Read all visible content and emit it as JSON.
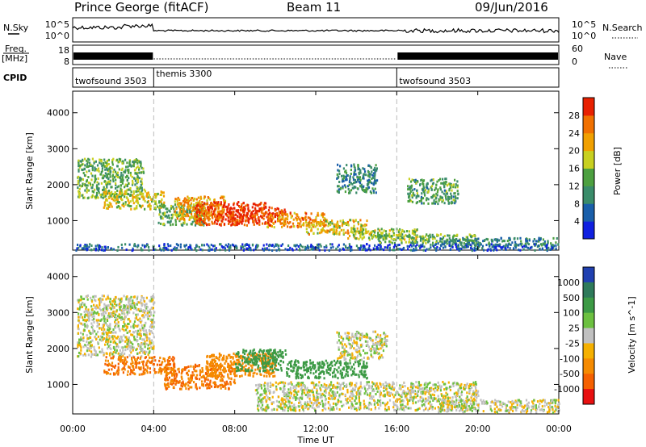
{
  "header": {
    "station": "Prince George (fitACF)",
    "beam": "Beam 11",
    "date": "09/Jun/2016"
  },
  "noise_panel": {
    "left_label": "N.Sky",
    "left_ticks": [
      "10^5",
      "10^0"
    ],
    "right_label": "N.Search",
    "right_ticks": [
      "10^5",
      "10^0"
    ]
  },
  "freq_panel": {
    "left_label_1": "Freq.",
    "left_label_2": "[MHz]",
    "left_ticks": [
      "18",
      "8"
    ],
    "right_label": "Nave",
    "right_ticks": [
      "60",
      "0"
    ]
  },
  "cpid": {
    "label": "CPID",
    "segments": [
      {
        "name": "twofsound 3503",
        "start": 0,
        "end": 4
      },
      {
        "name": "themis 3300",
        "start": 4,
        "end": 16
      },
      {
        "name": "twofsound 3503",
        "start": 16,
        "end": 24
      }
    ]
  },
  "x_axis": {
    "label": "Time UT",
    "ticks": [
      "00:00",
      "04:00",
      "08:00",
      "12:00",
      "16:00",
      "20:00",
      "00:00"
    ],
    "range_hours": [
      0,
      24
    ]
  },
  "y_axis": {
    "label": "Slant Range [km]",
    "ticks": [
      "1000",
      "2000",
      "3000",
      "4000"
    ],
    "range_km": [
      180,
      4600
    ]
  },
  "power_colorbar": {
    "label": "Power [dB]",
    "ticks": [
      "4",
      "8",
      "12",
      "16",
      "20",
      "24",
      "28"
    ],
    "range": [
      0,
      32
    ],
    "colors": [
      "#1020e0",
      "#1a5faa",
      "#3a8c6a",
      "#4da040",
      "#c8d020",
      "#f0a000",
      "#f07000",
      "#e82000"
    ]
  },
  "velocity_colorbar": {
    "label": "Velocity [m s^-1]",
    "ticks": [
      "1000",
      "500",
      "100",
      "25",
      "-25",
      "-100",
      "-500",
      "-1000"
    ],
    "colors": [
      "#2040b0",
      "#2e7a5a",
      "#3c9a45",
      "#6cc040",
      "#c0c0c0",
      "#f5b000",
      "#f58a00",
      "#f56000",
      "#e81010"
    ]
  },
  "chart_data": {
    "type": "heatmap",
    "title": "Prince George (fitACF)  Beam 11  09/Jun/2016",
    "xlabel": "Time UT",
    "ylabel": "Slant Range [km]",
    "xlim": [
      0,
      24
    ],
    "ylim": [
      180,
      4600
    ],
    "grid": false,
    "power_patches": [
      {
        "t0": 0.2,
        "t1": 3.5,
        "r0": 1650,
        "r1": 2750,
        "power": 14
      },
      {
        "t0": 1.5,
        "t1": 4.5,
        "r0": 1350,
        "r1": 1850,
        "power": 19
      },
      {
        "t0": 4.2,
        "t1": 6.5,
        "r0": 900,
        "r1": 1500,
        "power": 13
      },
      {
        "t0": 5.0,
        "t1": 7.5,
        "r0": 1050,
        "r1": 1700,
        "power": 23
      },
      {
        "t0": 6.0,
        "t1": 9.5,
        "r0": 900,
        "r1": 1550,
        "power": 29
      },
      {
        "t0": 7.5,
        "t1": 10.5,
        "r0": 1000,
        "r1": 1400,
        "power": 30
      },
      {
        "t0": 9.5,
        "t1": 12.5,
        "r0": 850,
        "r1": 1250,
        "power": 24
      },
      {
        "t0": 11.5,
        "t1": 14.5,
        "r0": 650,
        "r1": 1050,
        "power": 20
      },
      {
        "t0": 13.5,
        "t1": 17.0,
        "r0": 500,
        "r1": 800,
        "power": 17
      },
      {
        "t0": 15.0,
        "t1": 20.0,
        "r0": 400,
        "r1": 650,
        "power": 14
      },
      {
        "t0": 18.0,
        "t1": 24.0,
        "r0": 300,
        "r1": 550,
        "power": 10
      },
      {
        "t0": 13.0,
        "t1": 15.0,
        "r0": 1800,
        "r1": 2600,
        "power": 10
      },
      {
        "t0": 16.5,
        "t1": 19.0,
        "r0": 1500,
        "r1": 2200,
        "power": 12
      },
      {
        "t0": 0.1,
        "t1": 23.9,
        "r0": 200,
        "r1": 380,
        "power": 6
      }
    ],
    "velocity_patches": [
      {
        "t0": 0.2,
        "t1": 4.0,
        "r0": 1800,
        "r1": 3500,
        "velocity": 0
      },
      {
        "t0": 1.5,
        "t1": 5.0,
        "r0": 1300,
        "r1": 1800,
        "velocity": -300
      },
      {
        "t0": 4.5,
        "t1": 8.0,
        "r0": 900,
        "r1": 1600,
        "velocity": -300
      },
      {
        "t0": 6.5,
        "t1": 10.0,
        "r0": 1250,
        "r1": 1900,
        "velocity": -150
      },
      {
        "t0": 8.0,
        "t1": 10.5,
        "r0": 1400,
        "r1": 2000,
        "velocity": 150
      },
      {
        "t0": 10.5,
        "t1": 14.5,
        "r0": 1200,
        "r1": 1700,
        "velocity": 200
      },
      {
        "t0": 9.0,
        "t1": 20.0,
        "r0": 300,
        "r1": 1100,
        "velocity": 0
      },
      {
        "t0": 18.0,
        "t1": 24.0,
        "r0": 250,
        "r1": 600,
        "velocity": 0
      },
      {
        "t0": 13.0,
        "t1": 15.5,
        "r0": 1700,
        "r1": 2500,
        "velocity": 0
      }
    ]
  }
}
